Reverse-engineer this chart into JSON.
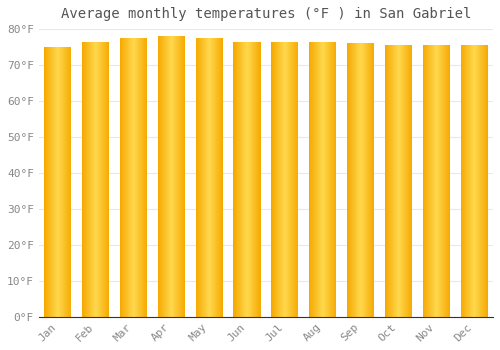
{
  "title": "Average monthly temperatures (°F ) in San Gabriel",
  "months": [
    "Jan",
    "Feb",
    "Mar",
    "Apr",
    "May",
    "Jun",
    "Jul",
    "Aug",
    "Sep",
    "Oct",
    "Nov",
    "Dec"
  ],
  "values": [
    75.0,
    76.5,
    77.5,
    78.0,
    77.5,
    76.5,
    76.5,
    76.5,
    76.0,
    75.5,
    75.5,
    75.5
  ],
  "bar_color_left": "#F5A800",
  "bar_color_center": "#FFD84D",
  "bar_color_right": "#F5A800",
  "background_color": "#FFFFFF",
  "plot_bg_color": "#FFFFFF",
  "grid_color": "#E8E8E8",
  "text_color": "#888888",
  "title_color": "#555555",
  "axis_color": "#333333",
  "ylim": [
    0,
    80
  ],
  "yticks": [
    0,
    10,
    20,
    30,
    40,
    50,
    60,
    70,
    80
  ],
  "title_fontsize": 10,
  "tick_fontsize": 8,
  "bar_width": 0.72
}
